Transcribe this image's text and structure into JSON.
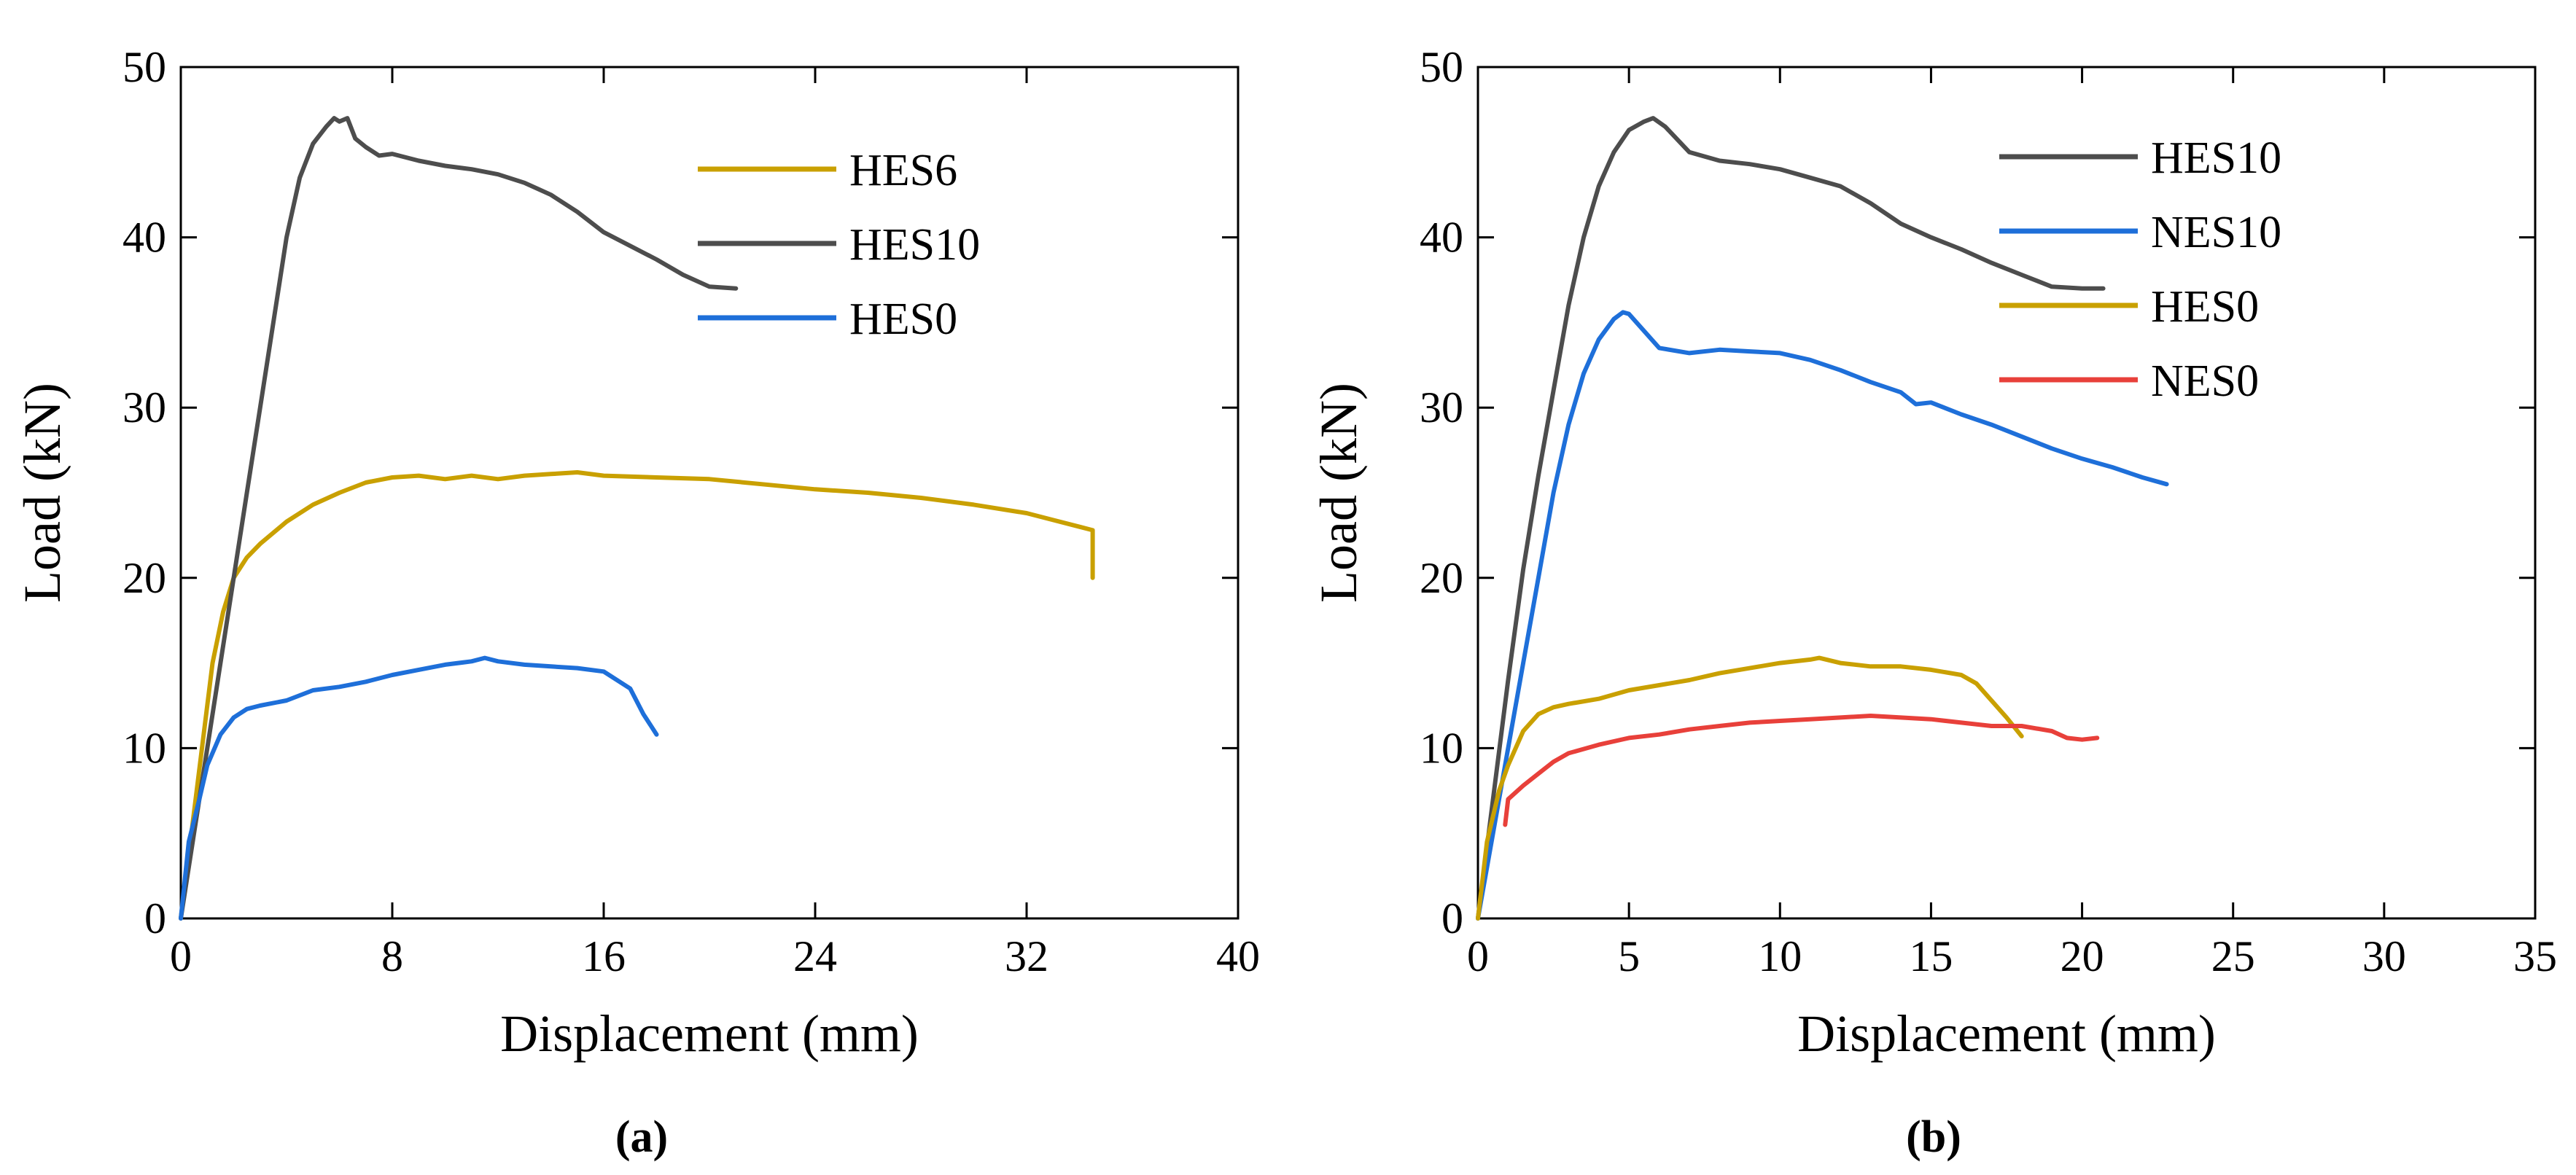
{
  "chart_data": [
    {
      "type": "line",
      "panel": "a",
      "caption": "(a)",
      "xlabel": "Displacement (mm)",
      "ylabel": "Load (kN)",
      "xlim": [
        0,
        40
      ],
      "ylim": [
        0,
        50
      ],
      "xticks": [
        0,
        8,
        16,
        24,
        32,
        40
      ],
      "yticks": [
        0,
        10,
        20,
        30,
        40,
        50
      ],
      "legend_position": "top-right",
      "series": [
        {
          "name": "HES6",
          "color": "#c9a000",
          "points": [
            [
              0,
              0
            ],
            [
              0.4,
              5
            ],
            [
              0.8,
              10
            ],
            [
              1.2,
              15
            ],
            [
              1.6,
              18
            ],
            [
              2,
              20
            ],
            [
              2.5,
              21.2
            ],
            [
              3,
              22
            ],
            [
              4,
              23.3
            ],
            [
              5,
              24.3
            ],
            [
              6,
              25
            ],
            [
              7,
              25.6
            ],
            [
              8,
              25.9
            ],
            [
              9,
              26
            ],
            [
              10,
              25.8
            ],
            [
              11,
              26
            ],
            [
              12,
              25.8
            ],
            [
              13,
              26
            ],
            [
              14,
              26.1
            ],
            [
              15,
              26.2
            ],
            [
              16,
              26
            ],
            [
              18,
              25.9
            ],
            [
              20,
              25.8
            ],
            [
              22,
              25.5
            ],
            [
              24,
              25.2
            ],
            [
              26,
              25
            ],
            [
              28,
              24.7
            ],
            [
              30,
              24.3
            ],
            [
              32,
              23.8
            ],
            [
              33,
              23.4
            ],
            [
              34,
              23
            ],
            [
              34.5,
              22.8
            ],
            [
              34.5,
              20
            ]
          ]
        },
        {
          "name": "HES10",
          "color": "#4d4d4d",
          "points": [
            [
              0,
              0
            ],
            [
              0.5,
              5
            ],
            [
              1,
              10
            ],
            [
              1.5,
              15
            ],
            [
              2,
              20
            ],
            [
              2.5,
              25
            ],
            [
              3,
              30
            ],
            [
              3.5,
              35
            ],
            [
              4,
              40
            ],
            [
              4.5,
              43.5
            ],
            [
              5,
              45.5
            ],
            [
              5.5,
              46.5
            ],
            [
              5.8,
              47
            ],
            [
              6,
              46.8
            ],
            [
              6.3,
              47
            ],
            [
              6.6,
              45.8
            ],
            [
              7,
              45.3
            ],
            [
              7.5,
              44.8
            ],
            [
              8,
              44.9
            ],
            [
              9,
              44.5
            ],
            [
              10,
              44.2
            ],
            [
              11,
              44
            ],
            [
              12,
              43.7
            ],
            [
              13,
              43.2
            ],
            [
              14,
              42.5
            ],
            [
              15,
              41.5
            ],
            [
              16,
              40.3
            ],
            [
              17,
              39.5
            ],
            [
              18,
              38.7
            ],
            [
              19,
              37.8
            ],
            [
              20,
              37.1
            ],
            [
              21,
              37
            ]
          ]
        },
        {
          "name": "HES0",
          "color": "#1e6fd9",
          "points": [
            [
              0,
              0
            ],
            [
              0.3,
              4.5
            ],
            [
              0.7,
              7
            ],
            [
              1,
              9
            ],
            [
              1.5,
              10.8
            ],
            [
              2,
              11.8
            ],
            [
              2.5,
              12.3
            ],
            [
              3,
              12.5
            ],
            [
              4,
              12.8
            ],
            [
              5,
              13.4
            ],
            [
              6,
              13.6
            ],
            [
              7,
              13.9
            ],
            [
              8,
              14.3
            ],
            [
              9,
              14.6
            ],
            [
              10,
              14.9
            ],
            [
              11,
              15.1
            ],
            [
              11.5,
              15.3
            ],
            [
              12,
              15.1
            ],
            [
              13,
              14.9
            ],
            [
              14,
              14.8
            ],
            [
              15,
              14.7
            ],
            [
              16,
              14.5
            ],
            [
              17,
              13.5
            ],
            [
              17.5,
              12
            ],
            [
              18,
              10.8
            ]
          ]
        }
      ]
    },
    {
      "type": "line",
      "panel": "b",
      "caption": "(b)",
      "xlabel": "Displacement (mm)",
      "ylabel": "Load (kN)",
      "xlim": [
        0,
        35
      ],
      "ylim": [
        0,
        50
      ],
      "xticks": [
        0,
        5,
        10,
        15,
        20,
        25,
        30,
        35
      ],
      "yticks": [
        0,
        10,
        20,
        30,
        40,
        50
      ],
      "legend_position": "top-right",
      "series": [
        {
          "name": "HES10",
          "color": "#4d4d4d",
          "points": [
            [
              0,
              0
            ],
            [
              0.5,
              7
            ],
            [
              1,
              14
            ],
            [
              1.5,
              20.5
            ],
            [
              2,
              26
            ],
            [
              2.5,
              31
            ],
            [
              3,
              36
            ],
            [
              3.5,
              40
            ],
            [
              4,
              43
            ],
            [
              4.5,
              45
            ],
            [
              5,
              46.3
            ],
            [
              5.5,
              46.8
            ],
            [
              5.8,
              47
            ],
            [
              6.2,
              46.5
            ],
            [
              7,
              45
            ],
            [
              8,
              44.5
            ],
            [
              9,
              44.3
            ],
            [
              10,
              44
            ],
            [
              11,
              43.5
            ],
            [
              12,
              43
            ],
            [
              13,
              42
            ],
            [
              14,
              40.8
            ],
            [
              15,
              40
            ],
            [
              16,
              39.3
            ],
            [
              17,
              38.5
            ],
            [
              18,
              37.8
            ],
            [
              19,
              37.1
            ],
            [
              20,
              37
            ],
            [
              20.7,
              37
            ]
          ]
        },
        {
          "name": "NES10",
          "color": "#1e6fd9",
          "points": [
            [
              0,
              0
            ],
            [
              0.5,
              5
            ],
            [
              1,
              10
            ],
            [
              1.5,
              15
            ],
            [
              2,
              20
            ],
            [
              2.5,
              25
            ],
            [
              3,
              29
            ],
            [
              3.5,
              32
            ],
            [
              4,
              34
            ],
            [
              4.5,
              35.2
            ],
            [
              4.8,
              35.6
            ],
            [
              5,
              35.5
            ],
            [
              5.5,
              34.5
            ],
            [
              6,
              33.5
            ],
            [
              7,
              33.2
            ],
            [
              8,
              33.4
            ],
            [
              9,
              33.3
            ],
            [
              10,
              33.2
            ],
            [
              11,
              32.8
            ],
            [
              12,
              32.2
            ],
            [
              13,
              31.5
            ],
            [
              14,
              30.9
            ],
            [
              14.5,
              30.2
            ],
            [
              15,
              30.3
            ],
            [
              16,
              29.6
            ],
            [
              17,
              29
            ],
            [
              18,
              28.3
            ],
            [
              19,
              27.6
            ],
            [
              20,
              27
            ],
            [
              21,
              26.5
            ],
            [
              22,
              25.9
            ],
            [
              22.8,
              25.5
            ]
          ]
        },
        {
          "name": "HES0",
          "color": "#c9a000",
          "points": [
            [
              0,
              0
            ],
            [
              0.3,
              4.5
            ],
            [
              0.7,
              7.5
            ],
            [
              1,
              9
            ],
            [
              1.5,
              11
            ],
            [
              2,
              12
            ],
            [
              2.5,
              12.4
            ],
            [
              3,
              12.6
            ],
            [
              4,
              12.9
            ],
            [
              5,
              13.4
            ],
            [
              6,
              13.7
            ],
            [
              7,
              14
            ],
            [
              8,
              14.4
            ],
            [
              9,
              14.7
            ],
            [
              10,
              15
            ],
            [
              11,
              15.2
            ],
            [
              11.3,
              15.3
            ],
            [
              12,
              15
            ],
            [
              13,
              14.8
            ],
            [
              14,
              14.8
            ],
            [
              15,
              14.6
            ],
            [
              16,
              14.3
            ],
            [
              16.5,
              13.8
            ],
            [
              17,
              12.8
            ],
            [
              17.5,
              11.8
            ],
            [
              18,
              10.7
            ]
          ]
        },
        {
          "name": "NES0",
          "color": "#e8403a",
          "points": [
            [
              0.9,
              5.5
            ],
            [
              1,
              7
            ],
            [
              1.5,
              7.8
            ],
            [
              2,
              8.5
            ],
            [
              2.5,
              9.2
            ],
            [
              3,
              9.7
            ],
            [
              4,
              10.2
            ],
            [
              5,
              10.6
            ],
            [
              6,
              10.8
            ],
            [
              7,
              11.1
            ],
            [
              8,
              11.3
            ],
            [
              9,
              11.5
            ],
            [
              10,
              11.6
            ],
            [
              11,
              11.7
            ],
            [
              12,
              11.8
            ],
            [
              13,
              11.9
            ],
            [
              14,
              11.8
            ],
            [
              15,
              11.7
            ],
            [
              16,
              11.5
            ],
            [
              17,
              11.3
            ],
            [
              18,
              11.3
            ],
            [
              19,
              11
            ],
            [
              19.5,
              10.6
            ],
            [
              20,
              10.5
            ],
            [
              20.5,
              10.6
            ]
          ]
        }
      ]
    }
  ]
}
